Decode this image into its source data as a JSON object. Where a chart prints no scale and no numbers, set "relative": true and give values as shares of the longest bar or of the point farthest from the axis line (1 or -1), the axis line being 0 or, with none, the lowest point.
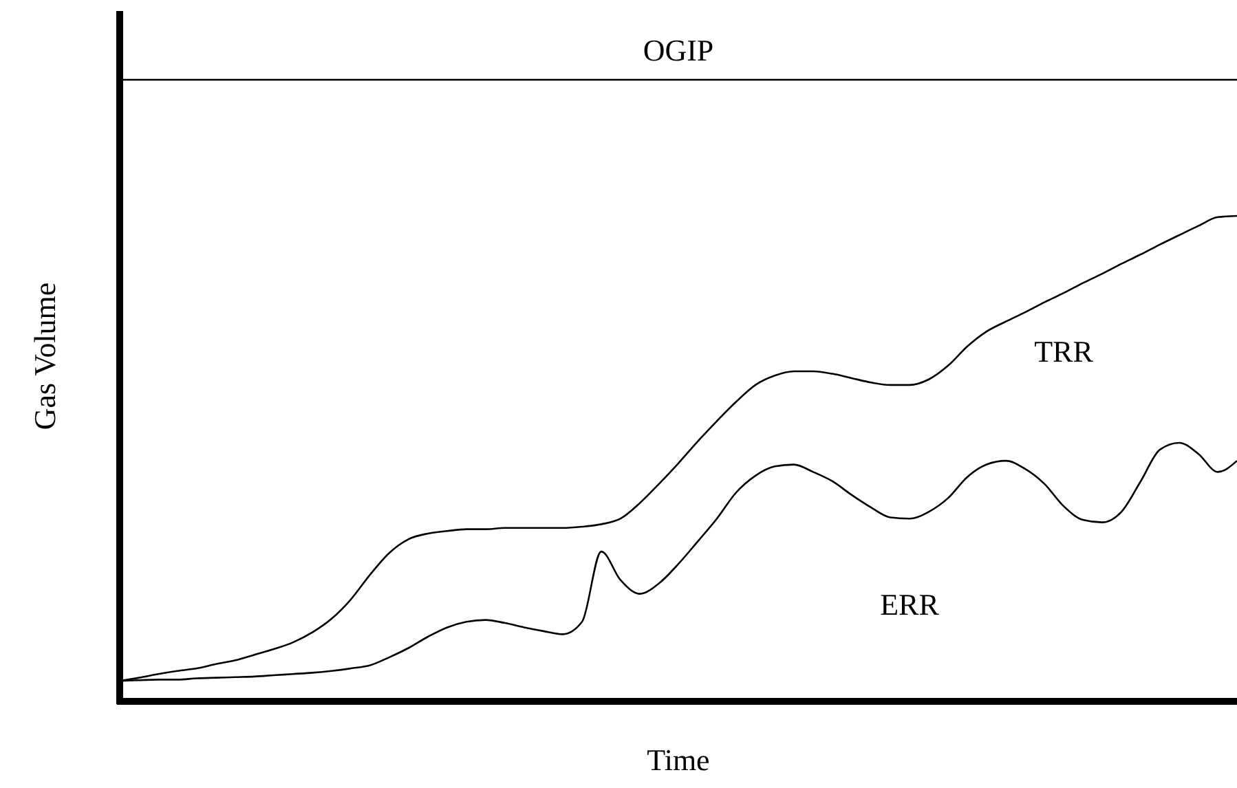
{
  "chart_data": {
    "type": "line",
    "relative": true,
    "xlabel": "Time",
    "ylabel": "Gas Volume",
    "marker": "none",
    "line_style": "solid",
    "categories": [
      null,
      null,
      null,
      null,
      null,
      null,
      null,
      null,
      null,
      null,
      null,
      null,
      null,
      null,
      null,
      null,
      null,
      null,
      null,
      null,
      null,
      null,
      null,
      null,
      null,
      null,
      null,
      null,
      null,
      null,
      null,
      null,
      null,
      null,
      null,
      null,
      null,
      null,
      null,
      null,
      null,
      null,
      null,
      null,
      null,
      null,
      null,
      null,
      null,
      null,
      null,
      null,
      null,
      null,
      null,
      null,
      null,
      null,
      null
    ],
    "series": [
      {
        "name": "OGIP",
        "color": "#000000",
        "values": [
          1,
          1,
          1,
          1,
          1,
          1,
          1,
          1,
          1,
          1,
          1,
          1,
          1,
          1,
          1,
          1,
          1,
          1,
          1,
          1,
          1,
          1,
          1,
          1,
          1,
          1,
          1,
          1,
          1,
          1,
          1,
          1,
          1,
          1,
          1,
          1,
          1,
          1,
          1,
          1,
          1,
          1,
          1,
          1,
          1,
          1,
          1,
          1,
          1,
          1,
          1,
          1,
          1,
          1,
          1,
          1,
          1,
          1,
          1
        ]
      },
      {
        "name": "TRR",
        "color": "#000000",
        "values": [
          0.033,
          0.038,
          0.044,
          0.049,
          0.053,
          0.06,
          0.066,
          0.075,
          0.084,
          0.095,
          0.111,
          0.133,
          0.164,
          0.204,
          0.239,
          0.261,
          0.27,
          0.274,
          0.277,
          0.277,
          0.279,
          0.279,
          0.279,
          0.279,
          0.281,
          0.285,
          0.294,
          0.319,
          0.35,
          0.383,
          0.418,
          0.451,
          0.482,
          0.509,
          0.524,
          0.531,
          0.531,
          0.527,
          0.52,
          0.513,
          0.509,
          0.509,
          0.518,
          0.54,
          0.571,
          0.595,
          0.611,
          0.626,
          0.642,
          0.657,
          0.673,
          0.688,
          0.704,
          0.719,
          0.735,
          0.75,
          0.765,
          0.779,
          0.781
        ]
      },
      {
        "name": "ERR",
        "color": "#000000",
        "values": [
          0.033,
          0.034,
          0.035,
          0.035,
          0.037,
          0.038,
          0.039,
          0.04,
          0.042,
          0.044,
          0.046,
          0.049,
          0.053,
          0.058,
          0.071,
          0.086,
          0.104,
          0.119,
          0.128,
          0.131,
          0.126,
          0.119,
          0.113,
          0.108,
          0.128,
          0.241,
          0.195,
          0.173,
          0.19,
          0.221,
          0.257,
          0.294,
          0.336,
          0.363,
          0.378,
          0.381,
          0.369,
          0.354,
          0.332,
          0.312,
          0.296,
          0.294,
          0.305,
          0.327,
          0.361,
          0.381,
          0.387,
          0.374,
          0.35,
          0.314,
          0.292,
          0.288,
          0.305,
          0.354,
          0.405,
          0.416,
          0.398,
          0.369,
          0.387
        ]
      }
    ]
  }
}
